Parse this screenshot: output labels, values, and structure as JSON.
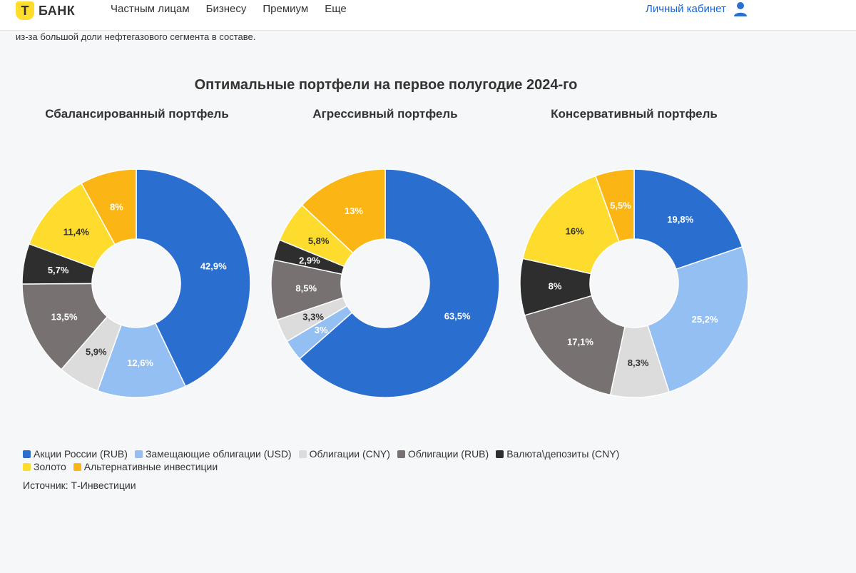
{
  "header": {
    "logo_mark": "Т",
    "logo_text": "БАНК",
    "nav": [
      "Частным лицам",
      "Бизнесу",
      "Премиум",
      "Еще"
    ],
    "cabinet": "Личный кабинет"
  },
  "intro_text": "из-за большой доли нефтегазового сегмента в составе.",
  "colors": {
    "stocks_rub": "#2a6fd0",
    "subst_bonds_usd": "#94bff2",
    "bonds_cny": "#dcdcdc",
    "bonds_rub": "#777271",
    "fx_deposits_cny": "#2e2e2e",
    "gold": "#fddc2e",
    "alternative": "#fbb616"
  },
  "chart_data": {
    "type": "pie",
    "title": "Оптимальные портфели на первое полугодие 2024-го",
    "categories": [
      "Акции России (RUB)",
      "Замещающие облигации (USD)",
      "Облигации (CNY)",
      "Облигации (RUB)",
      "Валюта\\депозиты (CNY)",
      "Золото",
      "Альтернативные инвестиции"
    ],
    "category_keys": [
      "stocks_rub",
      "subst_bonds_usd",
      "bonds_cny",
      "bonds_rub",
      "fx_deposits_cny",
      "gold",
      "alternative"
    ],
    "series": [
      {
        "name": "Сбалансированный портфель",
        "values": [
          42.9,
          12.6,
          5.9,
          13.5,
          5.7,
          11.4,
          8
        ],
        "labels": [
          "42,9%",
          "12,6%",
          "5,9%",
          "13,5%",
          "5,7%",
          "11,4%",
          "8%"
        ]
      },
      {
        "name": "Агрессивный портфель",
        "values": [
          63.5,
          3,
          3.3,
          8.5,
          2.9,
          5.8,
          13
        ],
        "labels": [
          "63,5%",
          "3%",
          "3,3%",
          "8,5%",
          "2,9%",
          "5,8%",
          "13%"
        ]
      },
      {
        "name": "Консервативный портфель",
        "values": [
          19.8,
          25.2,
          8.3,
          17.1,
          8,
          16,
          5.5
        ],
        "labels": [
          "19,8%",
          "25,2%",
          "8,3%",
          "17,1%",
          "8%",
          "16%",
          "5,5%"
        ]
      }
    ],
    "legend_position": "bottom",
    "source": "Источник: Т-Инвестиции"
  }
}
